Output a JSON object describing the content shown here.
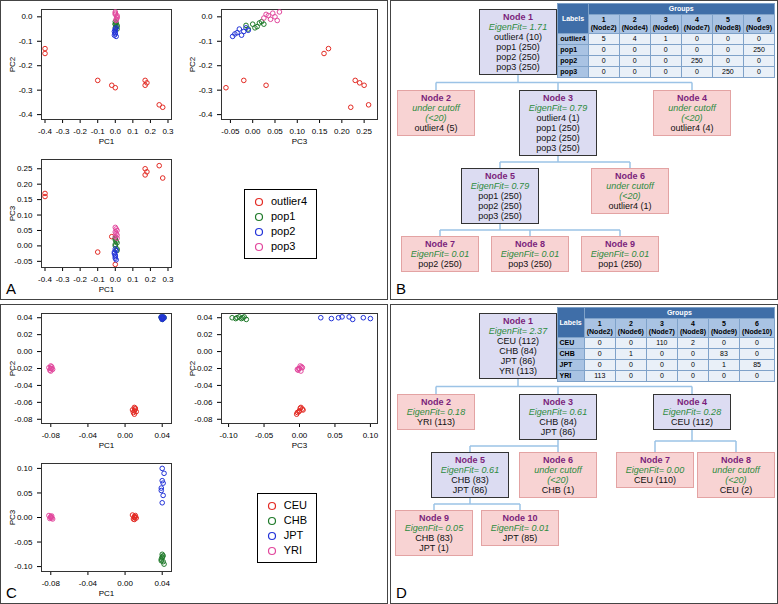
{
  "chart_data": [
    {
      "panel": "A",
      "type": "scatter_matrix",
      "dimensions": [
        "PC1",
        "PC2",
        "PC3"
      ],
      "marker": "open_circle",
      "legend": "bottom-right",
      "axes": {
        "PC1": {
          "lim": [
            -0.42,
            0.32
          ],
          "ticks": [
            -0.4,
            -0.3,
            -0.2,
            -0.1,
            {
              "value": 0,
              "label": "0.0"
            },
            0.1,
            0.2,
            0.3
          ]
        },
        "PC2": {
          "lim": [
            -0.42,
            0.03
          ],
          "ticks": [
            {
              "value": 0,
              "label": "0.0"
            },
            -0.1,
            -0.2,
            -0.3,
            -0.4
          ]
        },
        "PC3": {
          "lim": [
            -0.07,
            0.28
          ],
          "ticks": [
            -0.05,
            {
              "value": 0,
              "label": "0.00"
            },
            0.05,
            {
              "value": 0.1,
              "label": "0.10"
            },
            0.15,
            {
              "value": 0.2,
              "label": "0.20"
            },
            0.25
          ]
        }
      },
      "series": [
        {
          "name": "outlier4",
          "color": "#e32b24",
          "values": [
            [
              -0.4,
              -0.13,
              0.17
            ],
            [
              -0.4,
              -0.15,
              0.16
            ],
            [
              -0.1,
              -0.26,
              -0.02
            ],
            [
              0.0,
              -0.29,
              -0.06
            ],
            [
              0.17,
              -0.26,
              0.23
            ],
            [
              0.17,
              -0.28,
              0.25
            ],
            [
              0.18,
              -0.27,
              0.24
            ],
            [
              0.25,
              -0.36,
              0.26
            ],
            [
              -0.02,
              -0.28,
              0.03
            ],
            [
              0.27,
              -0.37,
              0.22
            ]
          ]
        },
        {
          "name": "pop1",
          "color": "#1f7a2a",
          "values": [
            [
              0.0,
              -0.03,
              0.0
            ],
            [
              0.01,
              -0.04,
              0.01
            ],
            [
              0.0,
              -0.02,
              0.02
            ],
            [
              0.01,
              -0.05,
              -0.01
            ],
            [
              0.0,
              -0.03,
              0.025
            ],
            [
              0.01,
              -0.035,
              -0.015
            ],
            [
              0.0,
              -0.045,
              0.005
            ],
            [
              0.005,
              -0.025,
              0.015
            ]
          ]
        },
        {
          "name": "pop2",
          "color": "#2233d8",
          "values": [
            [
              0.0,
              -0.05,
              -0.03
            ],
            [
              0.0,
              -0.07,
              -0.04
            ],
            [
              -0.005,
              -0.06,
              -0.02
            ],
            [
              0.005,
              -0.08,
              -0.045
            ],
            [
              0.0,
              -0.055,
              -0.01
            ],
            [
              0.0,
              -0.065,
              -0.035
            ],
            [
              -0.005,
              -0.075,
              -0.025
            ],
            [
              0.005,
              -0.045,
              -0.015
            ]
          ]
        },
        {
          "name": "pop3",
          "color": "#e2479d",
          "values": [
            [
              0.0,
              0.01,
              0.03
            ],
            [
              0.01,
              0.0,
              0.05
            ],
            [
              0.005,
              -0.01,
              0.04
            ],
            [
              0.0,
              0.02,
              0.06
            ],
            [
              0.01,
              0.005,
              0.035
            ],
            [
              0.005,
              -0.015,
              0.055
            ],
            [
              0.0,
              0.015,
              0.045
            ],
            [
              0.01,
              -0.005,
              0.025
            ]
          ]
        }
      ]
    },
    {
      "panel": "C",
      "type": "scatter_matrix",
      "dimensions": [
        "PC1",
        "PC2",
        "PC3"
      ],
      "marker": "open_circle",
      "legend": "bottom-right",
      "axes": {
        "PC1": {
          "lim": [
            -0.09,
            0.05
          ],
          "ticks": [
            -0.08,
            -0.04,
            {
              "value": 0,
              "label": "0.00"
            },
            0.04
          ]
        },
        "PC2": {
          "lim": [
            -0.085,
            0.045
          ],
          "ticks": [
            0.04,
            0.02,
            {
              "value": 0,
              "label": "0.00"
            },
            -0.02,
            -0.04,
            -0.06,
            -0.08
          ]
        },
        "PC3": {
          "lim": [
            -0.11,
            0.11
          ],
          "ticks": [
            {
              "value": -0.1,
              "label": "-0.10"
            },
            -0.05,
            {
              "value": 0,
              "label": "0.00"
            },
            0.05,
            {
              "value": 0.1,
              "label": "0.10"
            }
          ]
        }
      },
      "series": [
        {
          "name": "CEU",
          "color": "#e32b24",
          "values": [
            [
              0.01,
              -0.07,
              0.0
            ],
            [
              0.011,
              -0.068,
              0.004
            ],
            [
              0.009,
              -0.072,
              -0.003
            ],
            [
              0.01,
              -0.066,
              0.002
            ],
            [
              0.012,
              -0.071,
              -0.001
            ],
            [
              0.008,
              -0.069,
              0.005
            ],
            [
              0.01,
              -0.074,
              -0.004
            ],
            [
              0.011,
              -0.067,
              0.001
            ]
          ]
        },
        {
          "name": "CHB",
          "color": "#1f7a2a",
          "values": [
            [
              0.04,
              0.04,
              -0.08
            ],
            [
              0.041,
              0.039,
              -0.09
            ],
            [
              0.039,
              0.041,
              -0.085
            ],
            [
              0.04,
              0.038,
              -0.075
            ],
            [
              0.042,
              0.04,
              -0.095
            ],
            [
              0.04,
              0.039,
              -0.082
            ],
            [
              0.039,
              0.04,
              -0.088
            ],
            [
              0.041,
              0.041,
              -0.078
            ]
          ]
        },
        {
          "name": "JPT",
          "color": "#2233d8",
          "values": [
            [
              0.04,
              0.04,
              0.03
            ],
            [
              0.041,
              0.039,
              0.045
            ],
            [
              0.039,
              0.041,
              0.06
            ],
            [
              0.04,
              0.038,
              0.075
            ],
            [
              0.042,
              0.04,
              0.09
            ],
            [
              0.04,
              0.039,
              0.1
            ],
            [
              0.039,
              0.04,
              0.055
            ],
            [
              0.041,
              0.041,
              0.07
            ]
          ]
        },
        {
          "name": "YRI",
          "color": "#e2479d",
          "values": [
            [
              -0.08,
              -0.02,
              0.0
            ],
            [
              -0.079,
              -0.018,
              0.003
            ],
            [
              -0.081,
              -0.022,
              -0.002
            ],
            [
              -0.08,
              -0.017,
              0.001
            ],
            [
              -0.078,
              -0.021,
              -0.003
            ],
            [
              -0.082,
              -0.019,
              0.004
            ],
            [
              -0.08,
              -0.023,
              0.002
            ],
            [
              -0.079,
              -0.02,
              -0.001
            ]
          ]
        }
      ]
    }
  ],
  "diagrams": [
    {
      "panel": "B",
      "nodes": [
        {
          "id": "Node 1",
          "subtitle": "EigenFit= 1.71",
          "members": [
            "outlier4 (10)",
            "pop1 (250)",
            "pop2 (250)",
            "pop3 (250)"
          ]
        },
        {
          "id": "Node 2",
          "subtitle": "under cutoff (<20)",
          "members": [
            "outlier4 (5)"
          ]
        },
        {
          "id": "Node 3",
          "subtitle": "EigenFit= 0.79",
          "members": [
            "outlier4 (1)",
            "pop1 (250)",
            "pop2 (250)",
            "pop3 (250)"
          ]
        },
        {
          "id": "Node 4",
          "subtitle": "under cutoff (<20)",
          "members": [
            "outlier4 (4)"
          ]
        },
        {
          "id": "Node 5",
          "subtitle": "EigenFit= 0.79",
          "members": [
            "pop1 (250)",
            "pop2 (250)",
            "pop3 (250)"
          ]
        },
        {
          "id": "Node 6",
          "subtitle": "under cutoff (<20)",
          "members": [
            "outlier4 (1)"
          ]
        },
        {
          "id": "Node 7",
          "subtitle": "EigenFit= 0.01",
          "members": [
            "pop2 (250)"
          ]
        },
        {
          "id": "Node 8",
          "subtitle": "EigenFit= 0.01",
          "members": [
            "pop3 (250)"
          ]
        },
        {
          "id": "Node 9",
          "subtitle": "EigenFit= 0.01",
          "members": [
            "pop1 (250)"
          ]
        }
      ],
      "edges": [
        [
          "Node 1",
          "Node 2"
        ],
        [
          "Node 1",
          "Node 3"
        ],
        [
          "Node 1",
          "Node 4"
        ],
        [
          "Node 3",
          "Node 5"
        ],
        [
          "Node 3",
          "Node 6"
        ],
        [
          "Node 5",
          "Node 7"
        ],
        [
          "Node 5",
          "Node 8"
        ],
        [
          "Node 5",
          "Node 9"
        ]
      ],
      "table": {
        "title": "Groups",
        "corner": "Labels",
        "columns": [
          {
            "group": 1,
            "node": "(Node2)"
          },
          {
            "group": 2,
            "node": "(Node4)"
          },
          {
            "group": 3,
            "node": "(Node6)"
          },
          {
            "group": 4,
            "node": "(Node7)"
          },
          {
            "group": 5,
            "node": "(Node8)"
          },
          {
            "group": 6,
            "node": "(Node9)"
          }
        ],
        "rows": [
          {
            "label": "outlier4",
            "values": [
              5,
              4,
              1,
              0,
              0,
              0
            ]
          },
          {
            "label": "pop1",
            "values": [
              0,
              0,
              0,
              0,
              0,
              250
            ]
          },
          {
            "label": "pop2",
            "values": [
              0,
              0,
              0,
              250,
              0,
              0
            ]
          },
          {
            "label": "pop3",
            "values": [
              0,
              0,
              0,
              0,
              250,
              0
            ]
          }
        ]
      }
    },
    {
      "panel": "D",
      "nodes": [
        {
          "id": "Node 1",
          "subtitle": "EigenFit= 2.37",
          "members": [
            "CEU (112)",
            "CHB (84)",
            "JPT (86)",
            "YRI (113)"
          ]
        },
        {
          "id": "Node 2",
          "subtitle": "EigenFit= 0.18",
          "members": [
            "YRI (113)"
          ]
        },
        {
          "id": "Node 3",
          "subtitle": "EigenFit= 0.61",
          "members": [
            "CHB (84)",
            "JPT (86)"
          ]
        },
        {
          "id": "Node 4",
          "subtitle": "EigenFit= 0.28",
          "members": [
            "CEU (112)"
          ]
        },
        {
          "id": "Node 5",
          "subtitle": "EigenFit= 0.61",
          "members": [
            "CHB (83)",
            "JPT (86)"
          ]
        },
        {
          "id": "Node 6",
          "subtitle": "under cutoff (<20)",
          "members": [
            "CHB (1)"
          ]
        },
        {
          "id": "Node 7",
          "subtitle": "EigenFit= 0.00",
          "members": [
            "CEU (110)"
          ]
        },
        {
          "id": "Node 8",
          "subtitle": "under cutoff (<20)",
          "members": [
            "CEU (2)"
          ]
        },
        {
          "id": "Node 9",
          "subtitle": "EigenFit= 0.05",
          "members": [
            "CHB (83)",
            "JPT (1)"
          ]
        },
        {
          "id": "Node 10",
          "subtitle": "EigenFit= 0.01",
          "members": [
            "JPT (85)"
          ]
        }
      ],
      "edges": [
        [
          "Node 1",
          "Node 2"
        ],
        [
          "Node 1",
          "Node 3"
        ],
        [
          "Node 1",
          "Node 4"
        ],
        [
          "Node 3",
          "Node 5"
        ],
        [
          "Node 3",
          "Node 6"
        ],
        [
          "Node 4",
          "Node 7"
        ],
        [
          "Node 4",
          "Node 8"
        ],
        [
          "Node 5",
          "Node 9"
        ],
        [
          "Node 5",
          "Node 10"
        ]
      ],
      "table": {
        "title": "Groups",
        "corner": "Labels",
        "columns": [
          {
            "group": 1,
            "node": "(Node2)"
          },
          {
            "group": 2,
            "node": "(Node6)"
          },
          {
            "group": 3,
            "node": "(Node7)"
          },
          {
            "group": 4,
            "node": "(Node8)"
          },
          {
            "group": 5,
            "node": "(Node9)"
          },
          {
            "group": 6,
            "node": "(Node10)"
          }
        ],
        "rows": [
          {
            "label": "CEU",
            "values": [
              0,
              0,
              110,
              2,
              0,
              0
            ]
          },
          {
            "label": "CHB",
            "values": [
              0,
              1,
              0,
              0,
              83,
              0
            ]
          },
          {
            "label": "JPT",
            "values": [
              0,
              0,
              0,
              0,
              1,
              85
            ]
          },
          {
            "label": "YRI",
            "values": [
              113,
              0,
              0,
              0,
              0,
              0
            ]
          }
        ]
      }
    }
  ]
}
